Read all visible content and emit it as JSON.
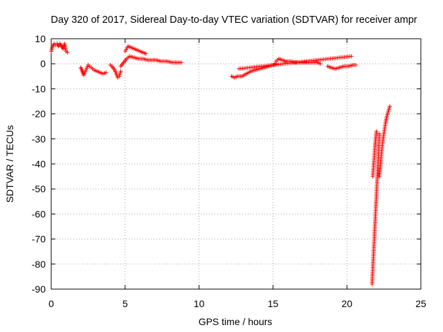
{
  "chart_data": {
    "type": "scatter",
    "title": "Day 320 of 2017, Sidereal Day-to-day VTEC variation (SDTVAR) for receiver ampr",
    "xlabel": "GPS time / hours",
    "ylabel": "SDTVAR / TECUs",
    "xlim": [
      0,
      25
    ],
    "ylim": [
      -90,
      10
    ],
    "xticks": [
      0,
      5,
      10,
      15,
      20,
      25
    ],
    "yticks": [
      10,
      0,
      -10,
      -20,
      -30,
      -40,
      -50,
      -60,
      -70,
      -80,
      -90
    ],
    "xtick_labels": [
      "0",
      "5",
      "10",
      "15",
      "20",
      "25"
    ],
    "ytick_labels": [
      "10",
      "0",
      "-10",
      "-20",
      "-30",
      "-40",
      "-50",
      "-60",
      "-70",
      "-80",
      "-90"
    ],
    "grid": true,
    "marker": "+",
    "color": "#ff0000",
    "series": [
      {
        "name": "SDTVAR",
        "segments": [
          {
            "x": [
              0.0,
              0.1,
              0.2,
              0.3,
              0.4,
              0.5,
              0.6,
              0.7,
              0.8,
              0.9,
              1.0,
              1.1
            ],
            "y": [
              5,
              7,
              8,
              7.5,
              8,
              7,
              8,
              7,
              6,
              8,
              5,
              4.5
            ]
          },
          {
            "x": [
              2.0,
              2.1,
              2.2,
              2.5,
              2.7,
              2.9,
              3.1,
              3.3,
              3.5,
              3.7
            ],
            "y": [
              -1.5,
              -3,
              -4.5,
              -0.5,
              -1.5,
              -2.5,
              -3,
              -3.5,
              -4,
              -3.5
            ]
          },
          {
            "x": [
              4.0,
              4.1,
              4.3,
              4.5,
              4.6,
              4.7
            ],
            "y": [
              -0.5,
              -1,
              -2.5,
              -5.5,
              -5,
              -3
            ]
          },
          {
            "x": [
              4.7,
              4.9,
              5.1,
              5.3,
              5.6,
              5.9,
              6.2,
              6.5,
              6.8,
              7.1,
              7.4,
              7.8,
              8.2,
              8.5,
              8.8
            ],
            "y": [
              -1,
              0.5,
              2,
              3,
              2.5,
              2,
              2,
              1.5,
              1.5,
              1.5,
              1,
              1,
              0.5,
              0.5,
              0.5
            ]
          },
          {
            "x": [
              5.0,
              5.2,
              5.4,
              5.6,
              5.8,
              6.0,
              6.2,
              6.4
            ],
            "y": [
              5,
              7,
              6.5,
              6,
              5.5,
              5,
              4.5,
              4
            ]
          },
          {
            "x": [
              12.2,
              12.4,
              12.6,
              12.9,
              13.2,
              13.5,
              13.8,
              14.1,
              14.4,
              14.7,
              15.0,
              15.2
            ],
            "y": [
              -5,
              -5.5,
              -5,
              -5,
              -4,
              -3,
              -2.5,
              -2,
              -1.5,
              -1,
              -0.5,
              0
            ]
          },
          {
            "x": [
              15.2,
              15.4,
              15.6,
              15.9,
              16.2,
              16.5,
              16.8,
              17.1,
              17.4,
              17.7,
              18.0,
              18.2
            ],
            "y": [
              1,
              2,
              1.5,
              1,
              1,
              0.5,
              0.5,
              0.5,
              0.5,
              0.5,
              0.5,
              0
            ]
          },
          {
            "x": [
              18.7,
              18.9,
              19.2,
              19.5,
              19.8,
              20.1,
              20.4,
              20.6
            ],
            "y": [
              -1,
              -1.5,
              -2,
              -1.5,
              -1,
              -1,
              -0.5,
              -0.5
            ]
          },
          {
            "x": [
              12.7,
              20.3
            ],
            "y": [
              -2,
              3
            ]
          },
          {
            "x": [
              21.7,
              21.75,
              21.8,
              21.85,
              21.9,
              21.95,
              22.0,
              22.05,
              22.1,
              22.15,
              22.2
            ],
            "y": [
              -88,
              -82,
              -76,
              -70,
              -64,
              -58,
              -52,
              -46,
              -40,
              -34,
              -28
            ]
          },
          {
            "x": [
              21.75,
              21.8,
              21.85,
              21.9,
              21.95,
              22.0
            ],
            "y": [
              -45,
              -41,
              -37,
              -33,
              -30,
              -27
            ]
          },
          {
            "x": [
              22.2,
              22.3,
              22.4,
              22.5,
              22.6,
              22.7,
              22.8,
              22.9
            ],
            "y": [
              -45,
              -38,
              -32,
              -28,
              -24,
              -21,
              -19,
              -17
            ]
          }
        ]
      }
    ]
  }
}
